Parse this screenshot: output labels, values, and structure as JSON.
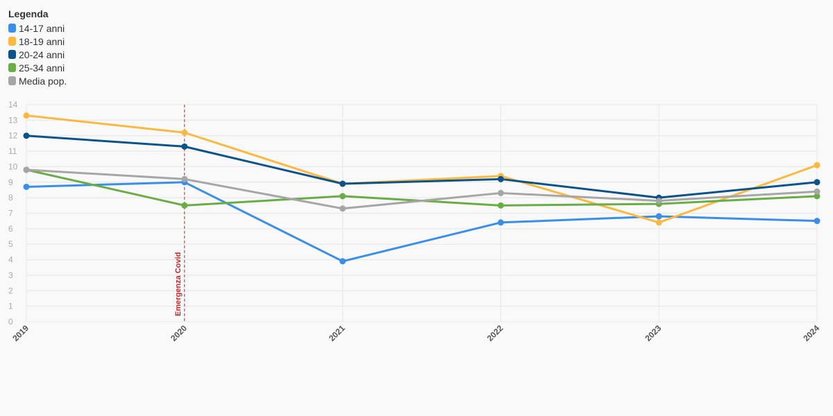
{
  "legend": {
    "title": "Legenda",
    "items": [
      {
        "label": "14-17 anni",
        "color": "#3b8ee8"
      },
      {
        "label": "18-19 anni",
        "color": "#fbb941"
      },
      {
        "label": "20-24 anni",
        "color": "#0b5388"
      },
      {
        "label": "25-34 anni",
        "color": "#6aac46"
      },
      {
        "label": "Media pop.",
        "color": "#a6a6a6"
      }
    ]
  },
  "chart_data": {
    "type": "line",
    "x": [
      "2019",
      "2020",
      "2021",
      "2022",
      "2023",
      "2024"
    ],
    "ylim": [
      0,
      14
    ],
    "yticks": [
      0,
      1,
      2,
      3,
      4,
      5,
      6,
      7,
      8,
      9,
      10,
      11,
      12,
      13,
      14
    ],
    "grid": true,
    "legend_position": "top-left",
    "series": [
      {
        "name": "14-17 anni",
        "color": "#3b8ee8",
        "values": [
          8.7,
          9.0,
          3.9,
          6.4,
          6.8,
          6.5
        ]
      },
      {
        "name": "18-19 anni",
        "color": "#fbb941",
        "values": [
          13.3,
          12.2,
          8.9,
          9.4,
          6.4,
          10.1
        ]
      },
      {
        "name": "20-24 anni",
        "color": "#0b5388",
        "values": [
          12.0,
          11.3,
          8.9,
          9.2,
          8.0,
          9.0
        ]
      },
      {
        "name": "25-34 anni",
        "color": "#6aac46",
        "values": [
          9.8,
          7.5,
          8.1,
          7.5,
          7.6,
          8.1
        ]
      },
      {
        "name": "Media pop.",
        "color": "#a6a6a6",
        "values": [
          9.8,
          9.2,
          7.3,
          8.3,
          7.8,
          8.4
        ]
      }
    ],
    "annotations": [
      {
        "x": "2020",
        "label": "Emergenza Covid",
        "color": "#c62828"
      }
    ]
  }
}
